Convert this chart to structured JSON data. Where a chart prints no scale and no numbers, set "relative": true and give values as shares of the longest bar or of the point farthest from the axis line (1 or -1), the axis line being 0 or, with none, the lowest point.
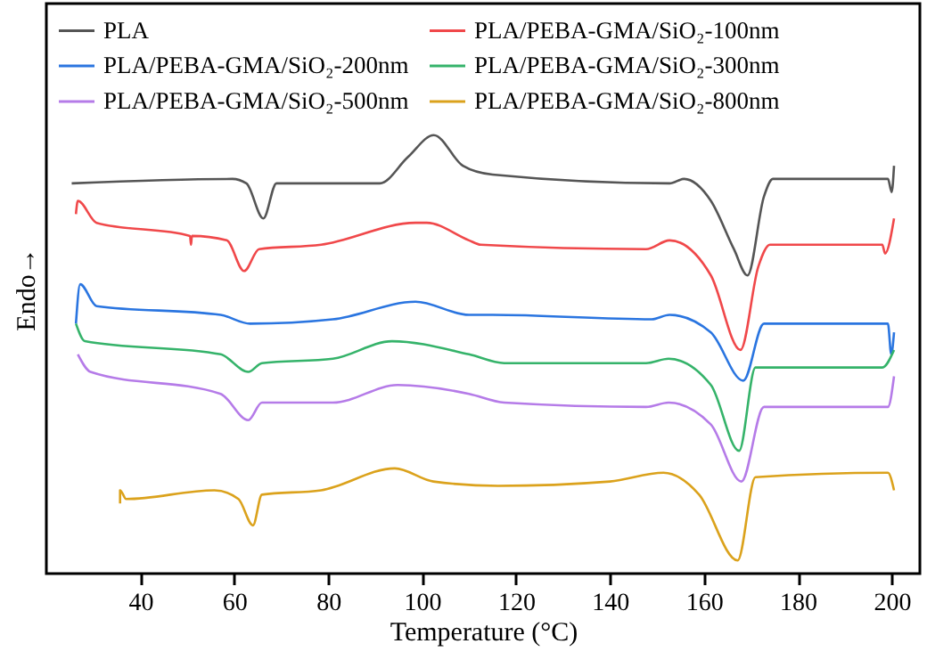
{
  "chart_data": {
    "type": "line",
    "relative": true,
    "xlabel": "Temperature (°C)",
    "ylabel": "Endo→",
    "xlim": [
      20,
      206
    ],
    "xticks": [
      40,
      60,
      80,
      100,
      120,
      140,
      160,
      180,
      200
    ],
    "grid": false,
    "legend": "top",
    "line_style": "solid",
    "marker": "none",
    "series": [
      {
        "name": "PLA",
        "color": "#555555",
        "x": [
          25.4,
          59.6,
          62.6,
          66.2,
          69,
          91,
          97,
          102.5,
          108.7,
          115,
          152.7,
          155.8,
          161.5,
          166.4,
          169.3,
          172.8,
          174.7,
          199.2,
          200,
          200.5
        ],
        "values": [
          0.89,
          0.9,
          0.89,
          0.81,
          0.89,
          0.89,
          0.95,
          1.0,
          0.93,
          0.91,
          0.89,
          0.9,
          0.85,
          0.74,
          0.68,
          0.86,
          0.9,
          0.9,
          0.87,
          0.93
        ]
      },
      {
        "name": "PLA/PEBA-GMA/SiO₂-100nm",
        "color": "#f0484a",
        "x": [
          26.3,
          26.7,
          30.7,
          50.6,
          50.8,
          51,
          58.4,
          62.1,
          65.3,
          78.5,
          98.6,
          101,
          110,
          112.5,
          147.7,
          152.7,
          161.5,
          167.8,
          171.6,
          174.1,
          198,
          198.6,
          200.5
        ],
        "values": [
          0.82,
          0.85,
          0.8,
          0.77,
          0.75,
          0.77,
          0.76,
          0.69,
          0.74,
          0.75,
          0.8,
          0.8,
          0.76,
          0.75,
          0.74,
          0.76,
          0.68,
          0.51,
          0.7,
          0.75,
          0.75,
          0.73,
          0.81
        ]
      },
      {
        "name": "PLA/PEBA-GMA/SiO₂-200nm",
        "color": "#2a75e0",
        "x": [
          26.3,
          27.2,
          30.7,
          57.1,
          63.4,
          81,
          98.6,
          110,
          115,
          148.9,
          152.7,
          161.5,
          168.4,
          172.8,
          199.2,
          199.9,
          200.5
        ],
        "values": [
          0.57,
          0.66,
          0.61,
          0.59,
          0.57,
          0.58,
          0.62,
          0.59,
          0.59,
          0.58,
          0.59,
          0.55,
          0.44,
          0.57,
          0.57,
          0.5,
          0.55
        ]
      },
      {
        "name": "PLA/PEBA-GMA/SiO₂-300nm",
        "color": "#35b36a",
        "x": [
          26.3,
          28.2,
          57.1,
          63,
          65.9,
          81,
          93.6,
          110,
          117.5,
          147.7,
          152.5,
          161.5,
          167.5,
          171,
          198,
          200.5
        ],
        "values": [
          0.57,
          0.53,
          0.5,
          0.46,
          0.48,
          0.49,
          0.53,
          0.5,
          0.48,
          0.48,
          0.49,
          0.43,
          0.28,
          0.47,
          0.47,
          0.51
        ]
      },
      {
        "name": "PLA/PEBA-GMA/SiO₂-500nm",
        "color": "#b57be8",
        "x": [
          26.7,
          29.4,
          57.1,
          63,
          65.9,
          81,
          94.8,
          110,
          117.5,
          147.7,
          152.5,
          161.5,
          168,
          172.8,
          199.2,
          200.5
        ],
        "values": [
          0.5,
          0.46,
          0.41,
          0.35,
          0.39,
          0.39,
          0.43,
          0.41,
          0.39,
          0.38,
          0.39,
          0.34,
          0.21,
          0.38,
          0.38,
          0.45
        ]
      },
      {
        "name": "PLA/PEBA-GMA/SiO₂-800nm",
        "color": "#dba21c",
        "x": [
          35.7,
          35.7,
          37,
          55.8,
          60.9,
          64,
          65.9,
          78.5,
          94.2,
          102.4,
          116.2,
          140,
          151.4,
          159,
          167.2,
          171,
          199.2,
          200.5
        ],
        "values": [
          0.16,
          0.19,
          0.17,
          0.19,
          0.17,
          0.11,
          0.18,
          0.19,
          0.24,
          0.21,
          0.2,
          0.21,
          0.23,
          0.18,
          0.03,
          0.22,
          0.23,
          0.19
        ]
      }
    ]
  }
}
